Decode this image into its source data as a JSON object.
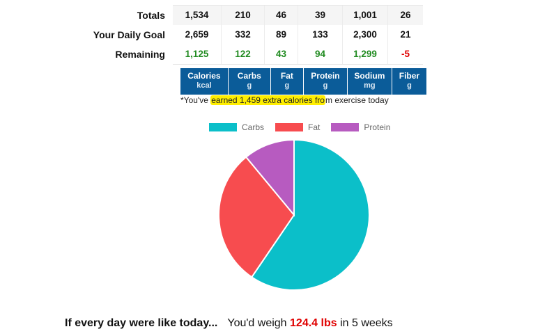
{
  "totals_table": {
    "rows": [
      {
        "label": "Totals",
        "values": [
          "1,534",
          "210",
          "46",
          "39",
          "1,001",
          "26"
        ]
      },
      {
        "label": "Your Daily Goal",
        "values": [
          "2,659",
          "332",
          "89",
          "133",
          "2,300",
          "21"
        ]
      },
      {
        "label": "Remaining",
        "values": [
          "1,125",
          "122",
          "43",
          "94",
          "1,299",
          "-5"
        ]
      }
    ],
    "columns": [
      {
        "name": "Calories",
        "unit": "kcal"
      },
      {
        "name": "Carbs",
        "unit": "g"
      },
      {
        "name": "Fat",
        "unit": "g"
      },
      {
        "name": "Protein",
        "unit": "g"
      },
      {
        "name": "Sodium",
        "unit": "mg"
      },
      {
        "name": "Fiber",
        "unit": "g"
      }
    ]
  },
  "exercise_note": {
    "prefix": "*You've ",
    "highlighted": "earned 1,459 extra calories fro",
    "suffix": "m exercise today"
  },
  "projection": {
    "lead": "If every day were like today...",
    "text_before": "You'd weigh ",
    "weight": "124.4 lbs",
    "text_after": " in 5 weeks"
  },
  "colors": {
    "header_bg": "#0b5c99",
    "positive": "#1f8a1f",
    "negative": "#e00000",
    "highlight": "#ffee00"
  },
  "chart_data": {
    "type": "pie",
    "categories": [
      "Carbs",
      "Fat",
      "Protein"
    ],
    "values": [
      59.5,
      29.5,
      11.0
    ],
    "colors": [
      "#0bbfc9",
      "#f74c4f",
      "#b75bc0"
    ],
    "legend_position": "top"
  }
}
